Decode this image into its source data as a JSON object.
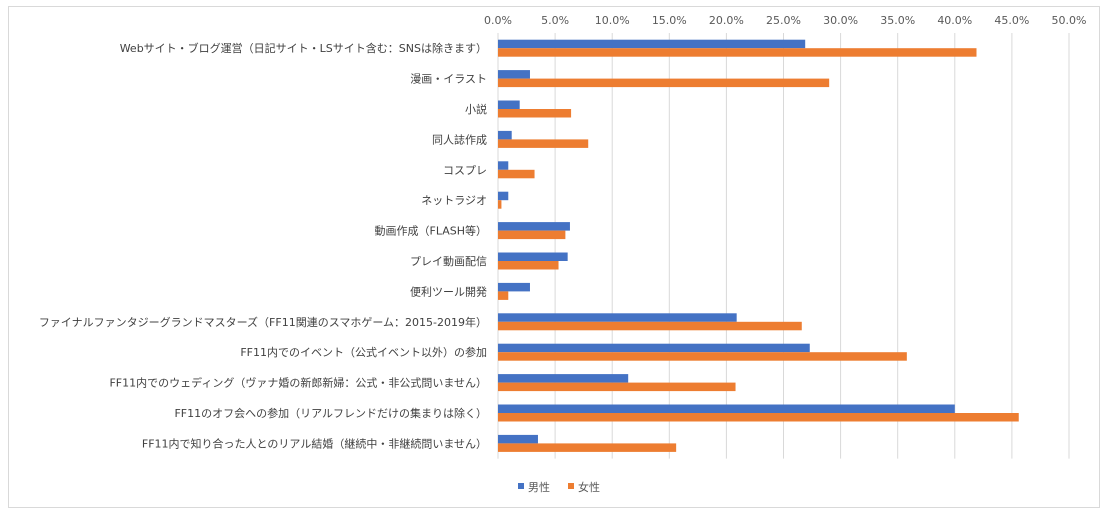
{
  "chart_data": {
    "type": "bar",
    "orientation": "horizontal",
    "title": "",
    "xlabel": "",
    "ylabel": "",
    "xlim": [
      0,
      50
    ],
    "x_ticks": [
      "0.0%",
      "5.0%",
      "10.0%",
      "15.0%",
      "20.0%",
      "25.0%",
      "30.0%",
      "35.0%",
      "40.0%",
      "45.0%",
      "50.0%"
    ],
    "axis_position": "top",
    "grid": true,
    "legend_position": "bottom",
    "categories": [
      "Webサイト・ブログ運営（日記サイト・LSサイト含む：SNSは除きます）",
      "漫画・イラスト",
      "小説",
      "同人誌作成",
      "コスプレ",
      "ネットラジオ",
      "動画作成（FLASH等）",
      "プレイ動画配信",
      "便利ツール開発",
      "ファイナルファンタジーグランドマスターズ（FF11関連のスマホゲーム：2015-2019年）",
      "FF11内でのイベント（公式イベント以外）の参加",
      "FF11内でのウェディング（ヴァナ婚の新郎新婦：公式・非公式問いません）",
      "FF11のオフ会への参加（リアルフレンドだけの集まりは除く）",
      "FF11内で知り合った人とのリアル結婚（継続中・非継続問いません）"
    ],
    "series": [
      {
        "name": "男性",
        "color": "#4472c4",
        "values": [
          26.9,
          2.8,
          1.9,
          1.2,
          0.9,
          0.9,
          6.3,
          6.1,
          2.8,
          20.9,
          27.3,
          11.4,
          40.0,
          3.5
        ]
      },
      {
        "name": "女性",
        "color": "#ed7d31",
        "values": [
          41.9,
          29.0,
          6.4,
          7.9,
          3.2,
          0.3,
          5.9,
          5.3,
          0.9,
          26.6,
          35.8,
          20.8,
          45.6,
          15.6
        ]
      }
    ]
  }
}
